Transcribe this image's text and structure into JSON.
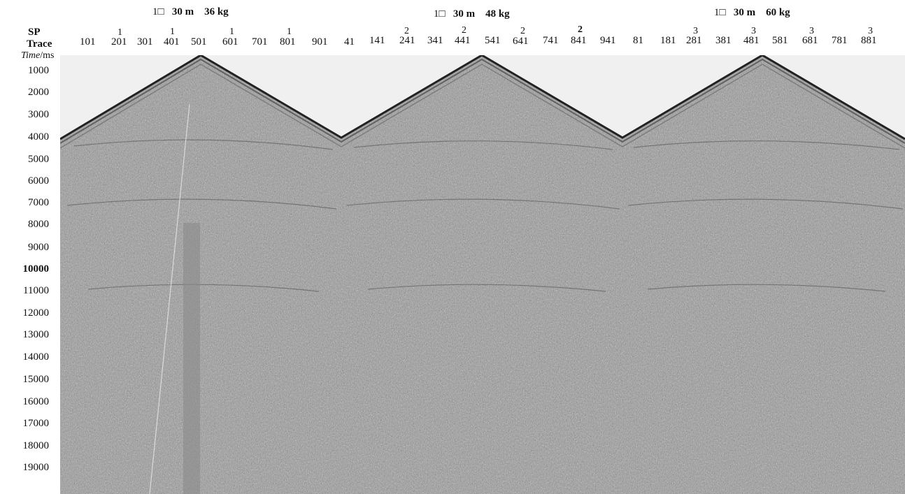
{
  "shot_titles": [
    {
      "hole": "1□",
      "depth": "30 m",
      "charge": "36 kg"
    },
    {
      "hole": "1□",
      "depth": "30 m",
      "charge": "48 kg"
    },
    {
      "hole": "1□",
      "depth": "30 m",
      "charge": "60 kg"
    }
  ],
  "labels": {
    "sp": "SP",
    "trace": "Trace",
    "time_italic": "Time",
    "time_unit": "/ms"
  },
  "trace_ticks": [
    "101",
    "201",
    "301",
    "401",
    "501",
    "601",
    "701",
    "801",
    "901",
    "41",
    "141",
    "241",
    "341",
    "441",
    "541",
    "641",
    "741",
    "841",
    "941",
    "81",
    "181",
    "281",
    "381",
    "481",
    "581",
    "681",
    "781",
    "881"
  ],
  "sp_marks": [
    "1",
    "1",
    "1",
    "1",
    "2",
    "2",
    "2",
    "2",
    "3",
    "3",
    "3",
    "3"
  ],
  "time_ticks": [
    "1000",
    "2000",
    "3000",
    "4000",
    "5000",
    "6000",
    "7000",
    "8000",
    "9000",
    "10000",
    "11000",
    "12000",
    "13000",
    "14000",
    "15000",
    "16000",
    "17000",
    "18000",
    "19000"
  ],
  "colors": {
    "seismic_gray": "#9a9a9a",
    "background": "#f0f0f0"
  }
}
